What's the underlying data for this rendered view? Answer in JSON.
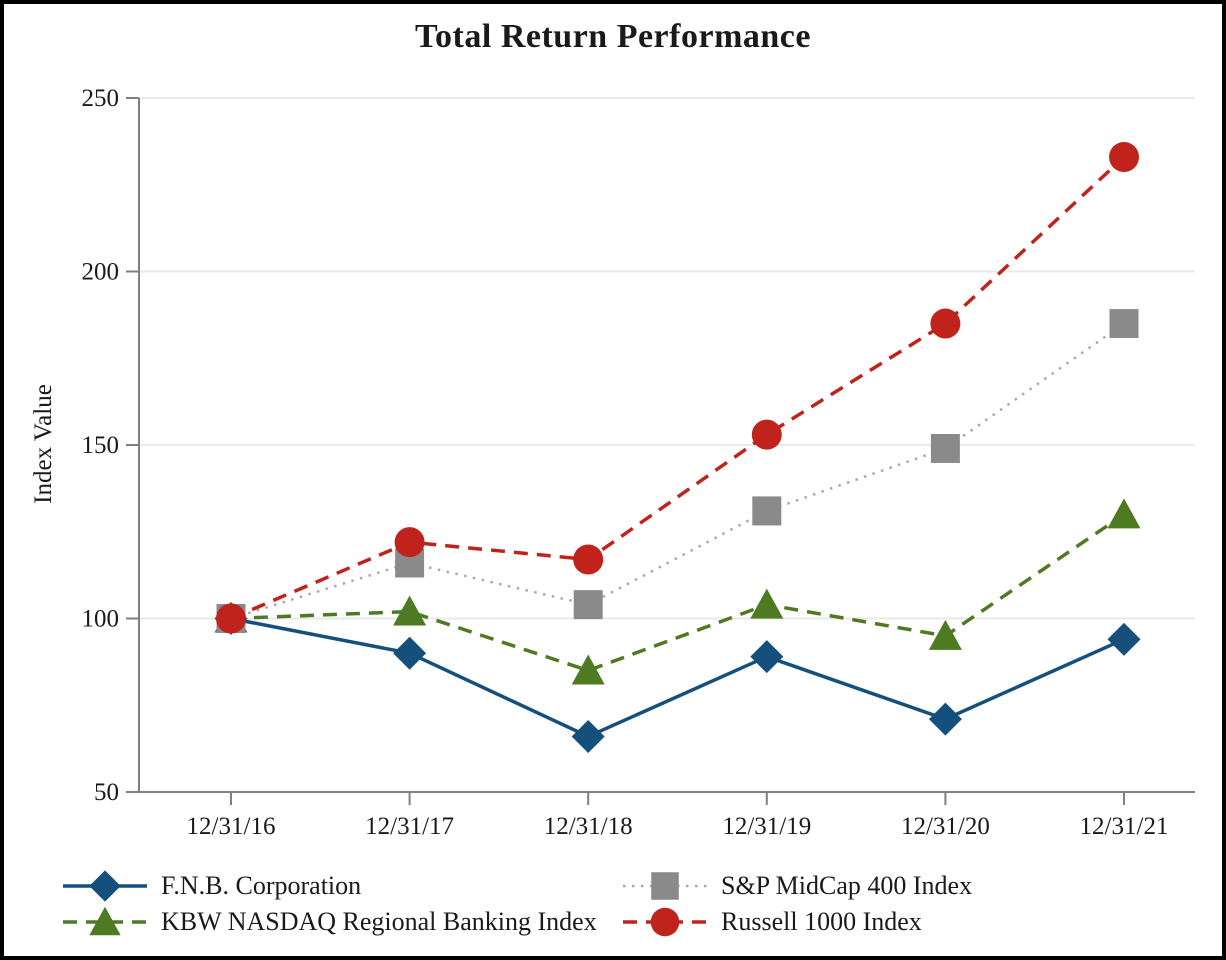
{
  "chart_data": {
    "type": "line",
    "title": "Total Return Performance",
    "xlabel": "",
    "ylabel": "Index Value",
    "ylim": [
      50,
      250
    ],
    "yticks": [
      50,
      100,
      150,
      200,
      250
    ],
    "grid": "horizontal",
    "legend_position": "bottom",
    "axis_color": "#808080",
    "gridline_color": "#E9E9E9",
    "categories": [
      "12/31/16",
      "12/31/17",
      "12/31/18",
      "12/31/19",
      "12/31/20",
      "12/31/21"
    ],
    "series": [
      {
        "name": "F.N.B. Corporation",
        "values": [
          100,
          90,
          66,
          89,
          71,
          94
        ],
        "color": "#15507D",
        "line_color": "#15507D",
        "marker": "diamond",
        "line_style": "solid"
      },
      {
        "name": "KBW NASDAQ Regional Banking Index",
        "values": [
          100,
          102,
          85,
          104,
          95,
          130
        ],
        "color": "#4E7A22",
        "line_color": "#4E7A22",
        "marker": "triangle",
        "line_style": "dashed"
      },
      {
        "name": "S&P MidCap 400 Index",
        "values": [
          100,
          116,
          104,
          131,
          149,
          185
        ],
        "color": "#8A8A8A",
        "line_color": "#A9A9A9",
        "marker": "square",
        "line_style": "dotted"
      },
      {
        "name": "Russell 1000 Index",
        "values": [
          100,
          122,
          117,
          153,
          185,
          233
        ],
        "color": "#C0231B",
        "line_color": "#C0231B",
        "marker": "circle",
        "line_style": "dashed"
      }
    ]
  }
}
